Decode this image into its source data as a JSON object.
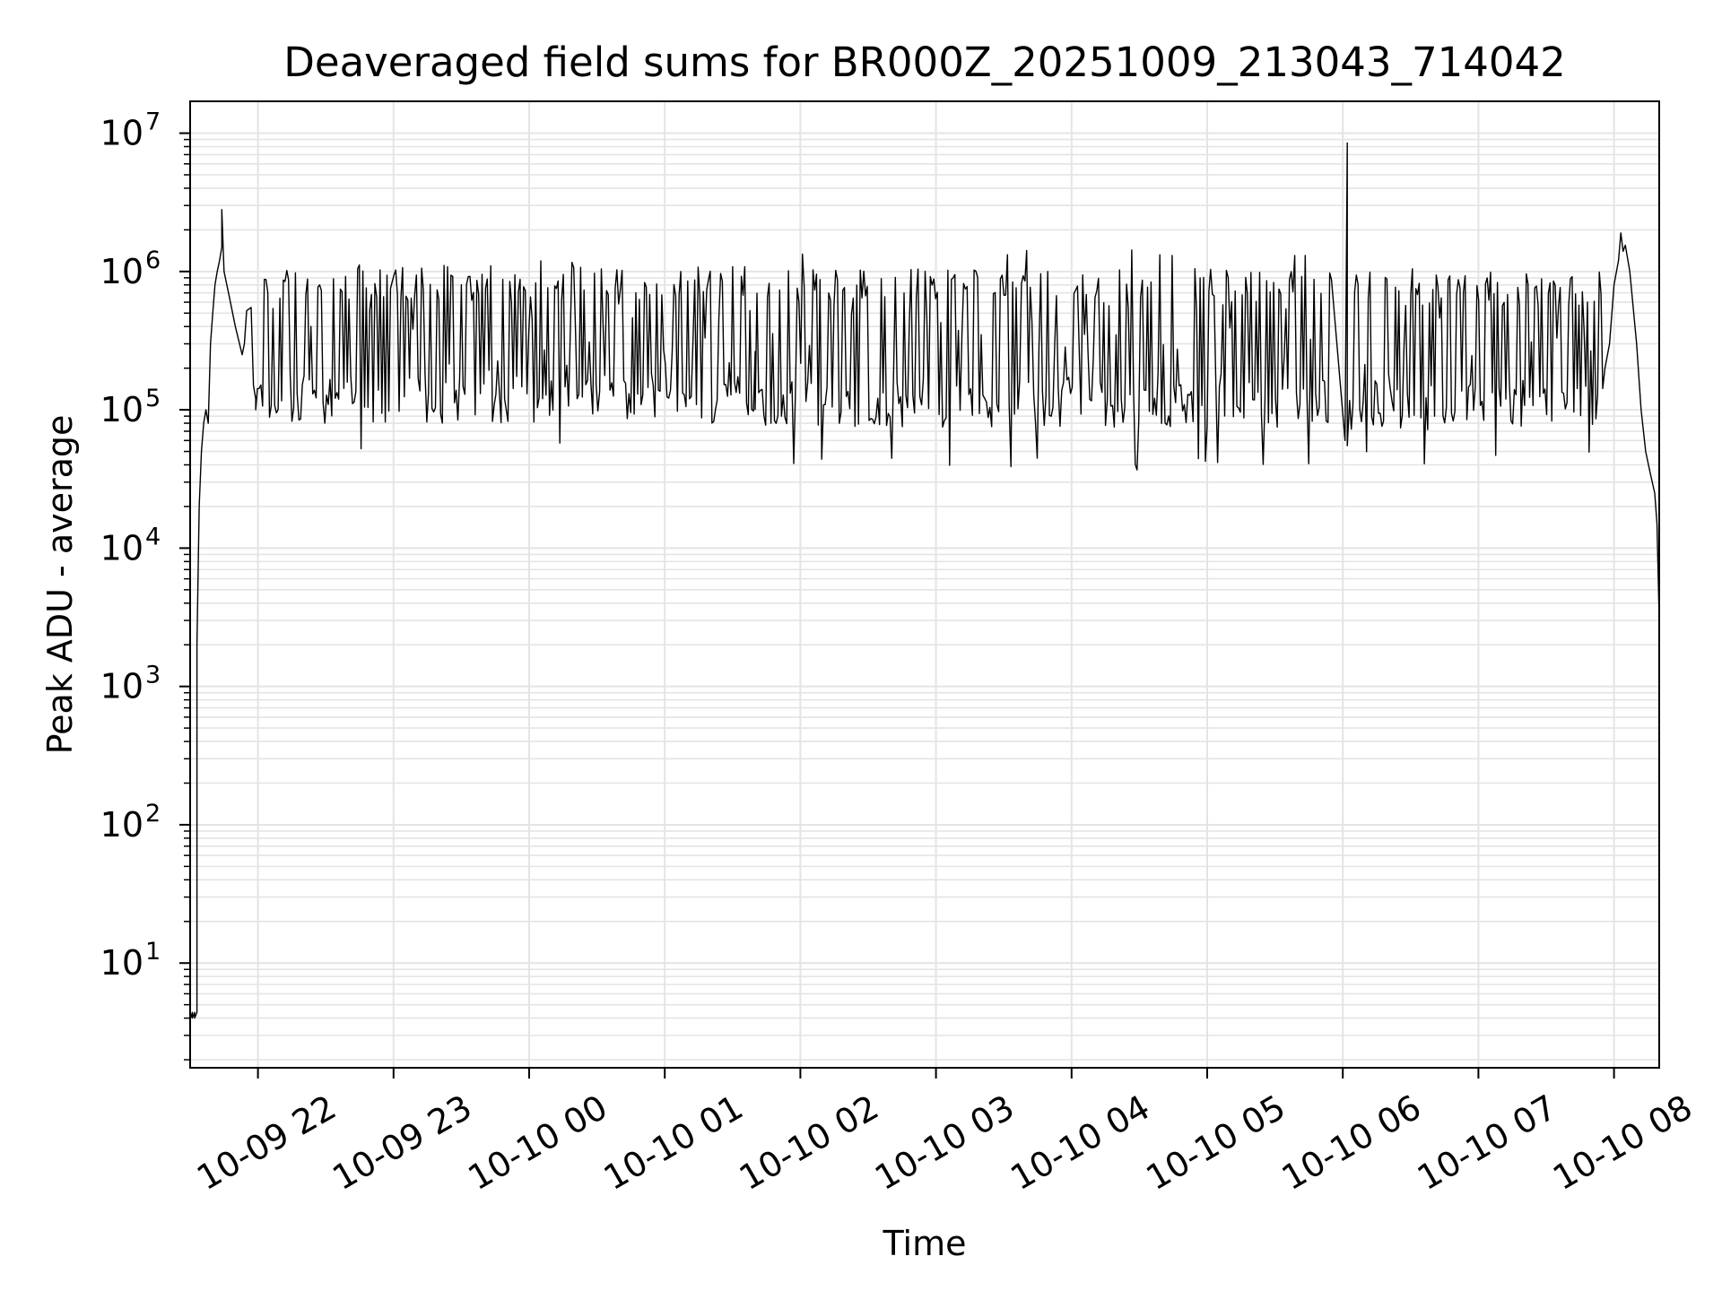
{
  "chart_data": {
    "type": "line",
    "title": "Deaveraged field sums for BR000Z_20251009_213043_714042",
    "xlabel": "Time",
    "ylabel": "Peak ADU - average",
    "xscale": "time",
    "yscale": "log",
    "xlim": [
      "2025-10-09 21:30",
      "2025-10-10 08:20"
    ],
    "ylim": [
      1.75,
      17000000
    ],
    "grid": true,
    "x_ticks": [
      {
        "value": "2025-10-09 22:00",
        "label": "10-09 22"
      },
      {
        "value": "2025-10-09 23:00",
        "label": "10-09 23"
      },
      {
        "value": "2025-10-10 00:00",
        "label": "10-10 00"
      },
      {
        "value": "2025-10-10 01:00",
        "label": "10-10 01"
      },
      {
        "value": "2025-10-10 02:00",
        "label": "10-10 02"
      },
      {
        "value": "2025-10-10 03:00",
        "label": "10-10 03"
      },
      {
        "value": "2025-10-10 04:00",
        "label": "10-10 04"
      },
      {
        "value": "2025-10-10 05:00",
        "label": "10-10 05"
      },
      {
        "value": "2025-10-10 06:00",
        "label": "10-10 06"
      },
      {
        "value": "2025-10-10 07:00",
        "label": "10-10 07"
      },
      {
        "value": "2025-10-10 08:00",
        "label": "10-10 08"
      }
    ],
    "y_ticks": [
      {
        "value": 10,
        "base": "10",
        "exp": "1"
      },
      {
        "value": 100,
        "base": "10",
        "exp": "2"
      },
      {
        "value": 1000,
        "base": "10",
        "exp": "3"
      },
      {
        "value": 10000,
        "base": "10",
        "exp": "4"
      },
      {
        "value": 100000,
        "base": "10",
        "exp": "5"
      },
      {
        "value": 1000000,
        "base": "10",
        "exp": "6"
      },
      {
        "value": 10000000,
        "base": "10",
        "exp": "7"
      }
    ],
    "series": [
      {
        "color": "#000000",
        "segments": [
          {
            "kind": "points",
            "points": [
              [
                "2025-10-09 21:30",
                4
              ],
              [
                "2025-10-09 21:30",
                3.9
              ],
              [
                "2025-10-09 21:31",
                4.4
              ],
              [
                "2025-10-09 21:31",
                4
              ],
              [
                "2025-10-09 21:32",
                4.4
              ],
              [
                "2025-10-09 21:32",
                4
              ],
              [
                "2025-10-09 21:33",
                4.4
              ],
              [
                "2025-10-09 21:33",
                2000
              ],
              [
                "2025-10-09 21:34",
                20000
              ],
              [
                "2025-10-09 21:35",
                50000
              ],
              [
                "2025-10-09 21:36",
                80000
              ],
              [
                "2025-10-09 21:37",
                100000
              ],
              [
                "2025-10-09 21:38",
                80000
              ],
              [
                "2025-10-09 21:39",
                300000
              ],
              [
                "2025-10-09 21:40",
                500000
              ],
              [
                "2025-10-09 21:41",
                800000
              ],
              [
                "2025-10-09 21:42",
                1000000
              ],
              [
                "2025-10-09 21:43",
                1200000
              ],
              [
                "2025-10-09 21:44",
                1500000
              ],
              [
                "2025-10-09 21:44",
                2800000
              ],
              [
                "2025-10-09 21:45",
                1000000
              ],
              [
                "2025-10-09 21:47",
                700000
              ],
              [
                "2025-10-09 21:50",
                400000
              ],
              [
                "2025-10-09 21:53",
                250000
              ],
              [
                "2025-10-09 21:54",
                300000
              ],
              [
                "2025-10-09 21:55",
                520000
              ],
              [
                "2025-10-09 21:57",
                550000
              ],
              [
                "2025-10-09 21:58",
                150000
              ],
              [
                "2025-10-09 21:59",
                120000
              ]
            ]
          },
          {
            "kind": "noise",
            "from": "2025-10-09 21:59",
            "to": "2025-10-10 01:40",
            "count": 290,
            "low": 80000,
            "high": 1100000,
            "min": 50000,
            "max": 1200000,
            "seed": 11
          },
          {
            "kind": "noise",
            "from": "2025-10-10 01:40",
            "to": "2025-10-10 05:55",
            "count": 330,
            "low": 75000,
            "high": 1050000,
            "min": 35000,
            "max": 1500000,
            "seed": 23
          },
          {
            "kind": "points",
            "points": [
              [
                "2025-10-10 06:01",
                60000
              ],
              [
                "2025-10-10 06:02",
                8500000
              ],
              [
                "2025-10-10 06:02",
                55000
              ]
            ]
          },
          {
            "kind": "noise",
            "from": "2025-10-10 06:03",
            "to": "2025-10-10 07:55",
            "count": 150,
            "low": 70000,
            "high": 1000000,
            "min": 40000,
            "max": 1100000,
            "seed": 37
          },
          {
            "kind": "points",
            "points": [
              [
                "2025-10-10 07:56",
                200000
              ],
              [
                "2025-10-10 07:58",
                300000
              ],
              [
                "2025-10-10 08:00",
                800000
              ],
              [
                "2025-10-10 08:02",
                1200000
              ],
              [
                "2025-10-10 08:03",
                1900000
              ],
              [
                "2025-10-10 08:04",
                1400000
              ],
              [
                "2025-10-10 08:05",
                1550000
              ],
              [
                "2025-10-10 08:07",
                1000000
              ],
              [
                "2025-10-10 08:10",
                300000
              ],
              [
                "2025-10-10 08:12",
                100000
              ],
              [
                "2025-10-10 08:14",
                50000
              ],
              [
                "2025-10-10 08:16",
                35000
              ],
              [
                "2025-10-10 08:18",
                25000
              ],
              [
                "2025-10-10 08:19",
                15000
              ],
              [
                "2025-10-10 08:20",
                3000
              ]
            ]
          }
        ]
      }
    ]
  }
}
